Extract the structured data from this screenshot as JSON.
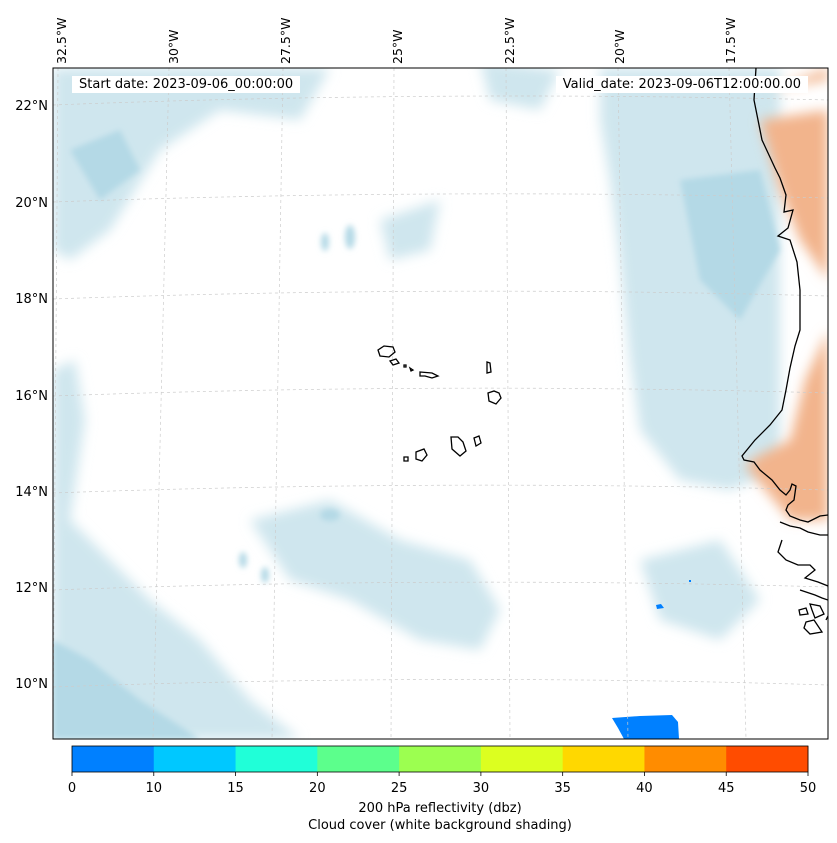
{
  "header": {
    "start_date": "Start date: 2023-09-06_00:00:00",
    "valid_date": "Valid_date: 2023-09-06T12:00:00.00"
  },
  "map": {
    "lon_labels": [
      "32.5°W",
      "30°W",
      "27.5°W",
      "25°W",
      "22.5°W",
      "20°W",
      "17.5°W"
    ],
    "lat_labels": [
      "22°N",
      "20°N",
      "18°N",
      "16°N",
      "14°N",
      "12°N",
      "10°N"
    ],
    "colors": {
      "cloud": "#cfe6ee",
      "cloud_dense": "#b4d9e6",
      "land_warm": "#f2b48c",
      "reflectivity": "#0080ff",
      "coast": "#000000",
      "grid": "#cccccc"
    }
  },
  "colorbar": {
    "ticks": [
      "0",
      "10",
      "15",
      "20",
      "25",
      "30",
      "35",
      "40",
      "45",
      "50"
    ],
    "colors": [
      "#0080ff",
      "#00c8ff",
      "#20ffd8",
      "#5cff8c",
      "#9cff50",
      "#dcff20",
      "#ffd800",
      "#ff8c00",
      "#ff4c00"
    ],
    "label_line1": "200 hPa reflectivity (dbz)",
    "label_line2": "Cloud cover (white background shading)"
  }
}
